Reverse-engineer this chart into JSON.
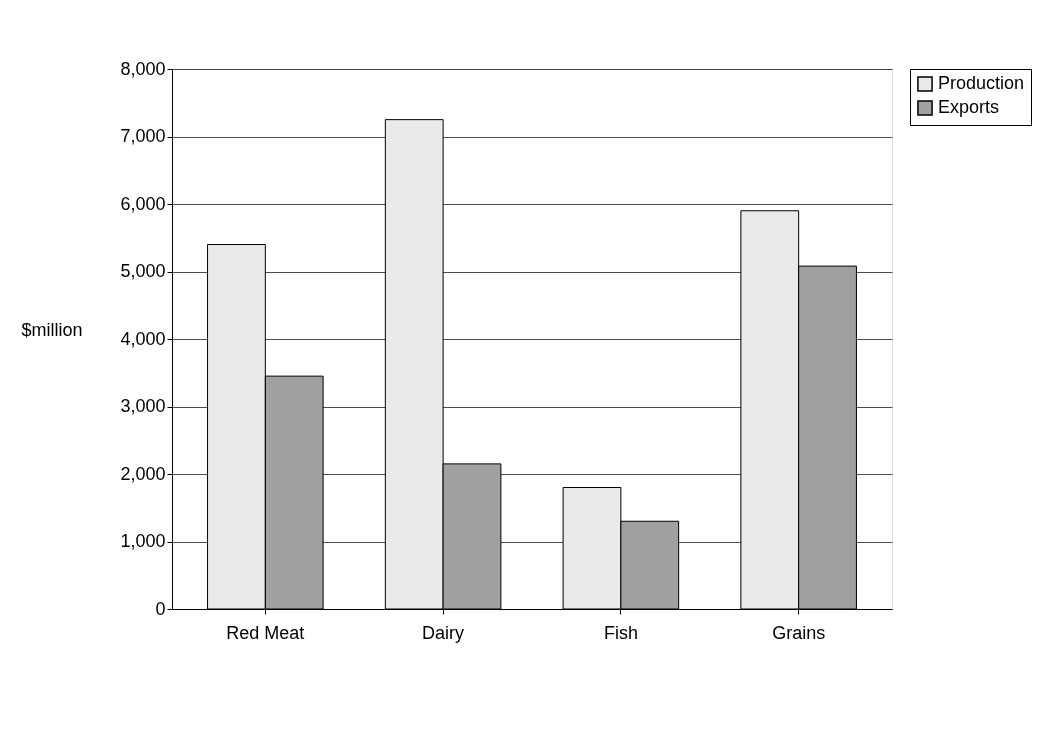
{
  "chart_data": {
    "type": "bar",
    "ylabel": "$million",
    "categories": [
      "Red Meat",
      "Dairy",
      "Fish",
      "Grains"
    ],
    "series": [
      {
        "name": "Production",
        "color": "#eaeaea",
        "values": [
          5400,
          7250,
          1800,
          5900
        ]
      },
      {
        "name": "Exports",
        "color": "#a0a0a0",
        "values": [
          3450,
          2150,
          1300,
          5080
        ]
      }
    ],
    "ylim": [
      0,
      8000
    ],
    "yticks": [
      {
        "value": 0,
        "label": "0"
      },
      {
        "value": 1000,
        "label": "1,000"
      },
      {
        "value": 2000,
        "label": "2,000"
      },
      {
        "value": 3000,
        "label": "3,000"
      },
      {
        "value": 4000,
        "label": "4,000"
      },
      {
        "value": 5000,
        "label": "5,000"
      },
      {
        "value": 6000,
        "label": "6,000"
      },
      {
        "value": 7000,
        "label": "7,000"
      },
      {
        "value": 8000,
        "label": "8,000"
      }
    ],
    "grid": "y",
    "legend": "right"
  }
}
